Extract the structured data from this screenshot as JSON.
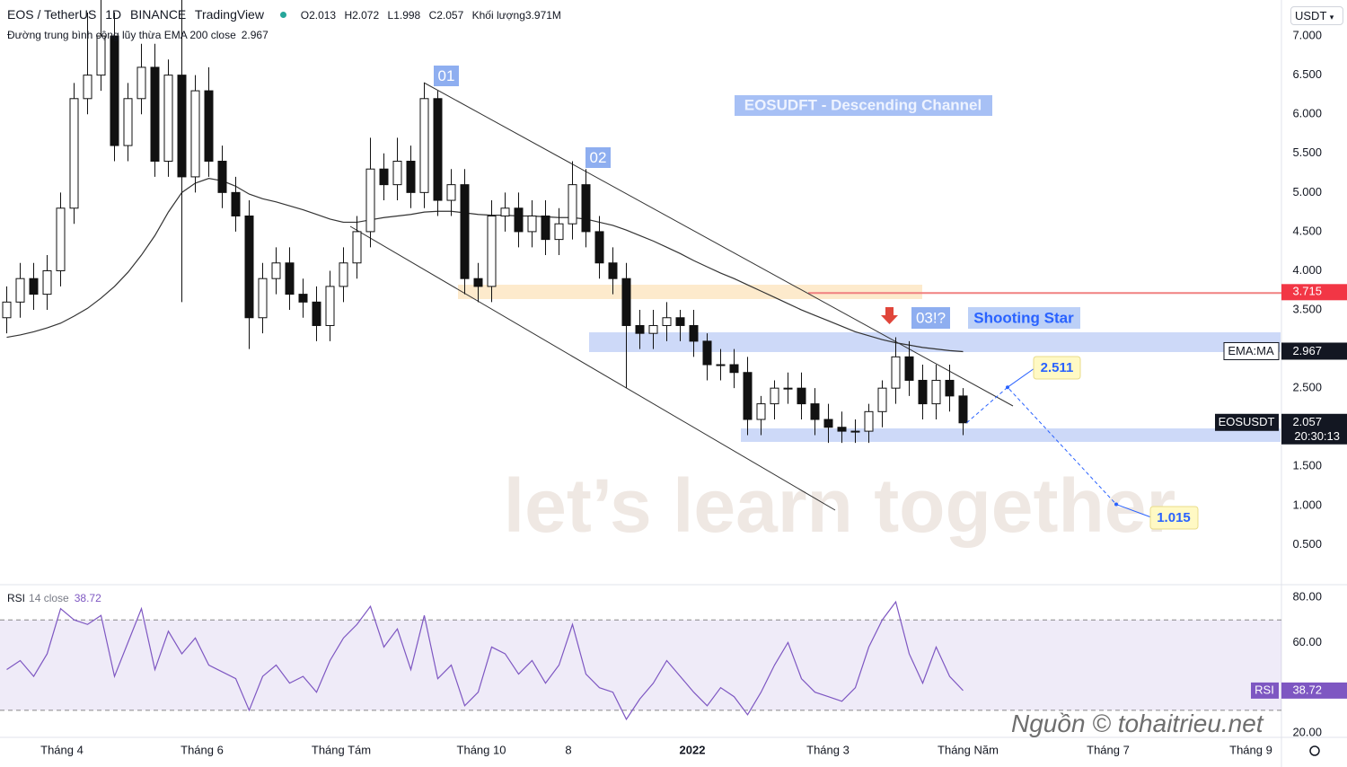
{
  "chart_data": {
    "type": "candlestick",
    "symbol": "EOS / TetherUS",
    "interval": "1D",
    "exchange": "BINANCE",
    "source": "TradingView",
    "ohlc_labels": [
      "O",
      "H",
      "L",
      "C"
    ],
    "ohlc_values": [
      {
        "value": 2.013,
        "label": "2.013"
      },
      {
        "value": 2.072,
        "label": "2.072"
      },
      {
        "value": 1.998,
        "label": "1.998"
      },
      {
        "value": 2.057,
        "label": "2.057"
      }
    ],
    "volume_label": "Khối lượng",
    "volume": "3.971M",
    "ema_legend": "Đường trung bình cộng lũy thừa EMA 200 close",
    "ema_value": {
      "value": 2.967,
      "label": "2.967"
    },
    "currency": "USDT",
    "ylim": [
      0,
      7.46
    ],
    "yticks": [
      {
        "value": 0.5,
        "label": "0.500"
      },
      {
        "value": 1,
        "label": "1.000"
      },
      {
        "value": 1.5,
        "label": "1.500"
      },
      {
        "value": 2,
        "label": "2.000"
      },
      {
        "value": 2.5,
        "label": "2.500"
      },
      {
        "value": 3,
        "label": "3.000"
      },
      {
        "value": 3.5,
        "label": "3.500"
      },
      {
        "value": 4,
        "label": "4.000"
      },
      {
        "value": 4.5,
        "label": "4.500"
      },
      {
        "value": 5,
        "label": "5.000"
      },
      {
        "value": 5.5,
        "label": "5.500"
      },
      {
        "value": 6,
        "label": "6.000"
      },
      {
        "value": 6.5,
        "label": "6.500"
      },
      {
        "value": 7,
        "label": "7.000"
      }
    ],
    "x_labels": [
      "Tháng 4",
      "Tháng 6",
      "Tháng Tám",
      "Tháng 10",
      "8",
      "2022",
      "Tháng 3",
      "Tháng Năm",
      "Tháng 7",
      "Tháng 9"
    ],
    "open": [
      3.4,
      3.6,
      3.9,
      3.7,
      4.0,
      4.8,
      6.2,
      6.5,
      7.0,
      5.6,
      6.2,
      6.6,
      5.4,
      6.5,
      5.2,
      6.3,
      5.4,
      5.0,
      4.7,
      3.4,
      3.9,
      4.1,
      3.7,
      3.6,
      3.3,
      3.8,
      4.1,
      4.5,
      5.3,
      5.1,
      5.4,
      5.0,
      6.2,
      4.9,
      5.1,
      3.9,
      3.8,
      4.7,
      4.8,
      4.5,
      4.7,
      4.4,
      4.6,
      5.1,
      4.5,
      4.1,
      3.9,
      3.3,
      3.2,
      3.3,
      3.4,
      3.3,
      3.1,
      2.8,
      2.8,
      2.7,
      2.1,
      2.3,
      2.5,
      2.5,
      2.3,
      2.1,
      2.0,
      1.95,
      1.95,
      2.2,
      2.5,
      2.9,
      2.6,
      2.3,
      2.6,
      2.4
    ],
    "high": [
      3.8,
      4.1,
      4.1,
      4.2,
      5.0,
      6.4,
      7.3,
      7.5,
      7.3,
      6.4,
      6.9,
      6.9,
      6.7,
      7.5,
      6.5,
      6.6,
      5.6,
      5.2,
      4.9,
      4.1,
      4.3,
      4.3,
      3.9,
      3.8,
      4.0,
      4.3,
      4.7,
      5.7,
      5.5,
      5.7,
      5.6,
      6.4,
      6.3,
      5.3,
      5.3,
      4.1,
      4.9,
      5.0,
      5.0,
      4.9,
      4.9,
      4.8,
      5.4,
      5.3,
      4.7,
      4.3,
      4.1,
      3.5,
      3.5,
      3.6,
      3.5,
      3.5,
      3.2,
      3.0,
      3.0,
      2.9,
      2.4,
      2.6,
      2.7,
      2.7,
      2.5,
      2.3,
      2.2,
      2.1,
      2.3,
      2.6,
      3.15,
      3.1,
      2.8,
      2.8,
      2.8,
      2.5
    ],
    "low": [
      3.2,
      3.4,
      3.5,
      3.5,
      3.8,
      4.6,
      6.0,
      6.3,
      5.4,
      5.4,
      6.0,
      5.2,
      5.2,
      3.6,
      5.0,
      5.2,
      4.8,
      4.5,
      3.0,
      3.2,
      3.7,
      3.5,
      3.4,
      3.1,
      3.1,
      3.6,
      3.9,
      4.3,
      4.9,
      4.9,
      4.8,
      4.8,
      4.7,
      4.7,
      3.7,
      3.6,
      3.6,
      4.5,
      4.3,
      4.3,
      4.2,
      4.2,
      4.4,
      4.3,
      3.9,
      3.7,
      2.5,
      3.0,
      3.0,
      3.1,
      3.1,
      2.9,
      2.6,
      2.6,
      2.5,
      1.9,
      1.9,
      2.1,
      2.3,
      2.1,
      1.9,
      1.8,
      1.8,
      1.8,
      1.8,
      2.0,
      2.3,
      2.4,
      2.1,
      2.1,
      2.2,
      1.9
    ],
    "close": [
      3.6,
      3.9,
      3.7,
      4.0,
      4.8,
      6.2,
      6.5,
      7.0,
      5.6,
      6.2,
      6.6,
      5.4,
      6.5,
      5.2,
      6.3,
      5.4,
      5.0,
      4.7,
      3.4,
      3.9,
      4.1,
      3.7,
      3.6,
      3.3,
      3.8,
      4.1,
      4.5,
      5.3,
      5.1,
      5.4,
      5.0,
      6.2,
      4.9,
      5.1,
      3.9,
      3.8,
      4.7,
      4.8,
      4.5,
      4.7,
      4.4,
      4.6,
      5.1,
      4.5,
      4.1,
      3.9,
      3.3,
      3.2,
      3.3,
      3.4,
      3.3,
      3.1,
      2.8,
      2.8,
      2.7,
      2.1,
      2.3,
      2.5,
      2.5,
      2.3,
      2.1,
      2.0,
      1.95,
      1.95,
      2.2,
      2.5,
      2.9,
      2.6,
      2.3,
      2.6,
      2.4,
      2.057
    ],
    "ema": [
      3.15,
      3.18,
      3.22,
      3.27,
      3.33,
      3.42,
      3.52,
      3.65,
      3.8,
      3.98,
      4.2,
      4.45,
      4.75,
      5.0,
      5.12,
      5.18,
      5.15,
      5.08,
      4.98,
      4.92,
      4.88,
      4.83,
      4.78,
      4.72,
      4.66,
      4.62,
      4.62,
      4.65,
      4.68,
      4.7,
      4.72,
      4.75,
      4.76,
      4.76,
      4.74,
      4.72,
      4.71,
      4.71,
      4.7,
      4.7,
      4.69,
      4.68,
      4.68,
      4.66,
      4.62,
      4.58,
      4.52,
      4.45,
      4.38,
      4.3,
      4.22,
      4.13,
      4.05,
      3.97,
      3.9,
      3.82,
      3.74,
      3.66,
      3.58,
      3.5,
      3.43,
      3.36,
      3.29,
      3.22,
      3.17,
      3.12,
      3.08,
      3.05,
      3.02,
      3.0,
      2.98,
      2.967
    ],
    "resistance": {
      "value": 3.715,
      "label": "3.715"
    },
    "ema_tag": "EMA:MA",
    "last_tag": "EOSUSDT",
    "last_price": {
      "value": 2.057,
      "label": "2.057"
    },
    "countdown": "20:30:13",
    "annotations": [
      "01",
      "02",
      "03!?",
      "EOSUDFT - Descending Channel",
      "Shooting Star"
    ],
    "targets": [
      {
        "value": 2.511,
        "label": "2.511"
      },
      {
        "value": 1.015,
        "label": "1.015"
      }
    ],
    "watermark": "let’s learn together",
    "credit": "Nguồn © tohaitrieu.net",
    "rsi": {
      "title": "RSI",
      "params": "14 close",
      "value": {
        "value": 38.72,
        "label": "38.72"
      },
      "ylim": [
        18.4,
        85.2
      ],
      "yticks": [
        {
          "value": 20,
          "label": "20.00"
        },
        {
          "value": 60,
          "label": "60.00"
        },
        {
          "value": 80,
          "label": "80.00"
        }
      ],
      "band": [
        30,
        70
      ],
      "values": [
        48,
        52,
        45,
        55,
        75,
        70,
        68,
        72,
        45,
        60,
        75,
        48,
        65,
        55,
        62,
        50,
        47,
        44,
        30,
        45,
        50,
        42,
        45,
        38,
        52,
        62,
        68,
        76,
        58,
        66,
        48,
        72,
        44,
        50,
        32,
        38,
        58,
        55,
        46,
        52,
        42,
        50,
        68,
        46,
        40,
        38,
        26,
        35,
        42,
        52,
        45,
        38,
        32,
        40,
        36,
        28,
        38,
        50,
        60,
        44,
        38,
        36,
        34,
        40,
        58,
        70,
        78,
        55,
        42,
        58,
        45,
        38.72
      ]
    }
  }
}
